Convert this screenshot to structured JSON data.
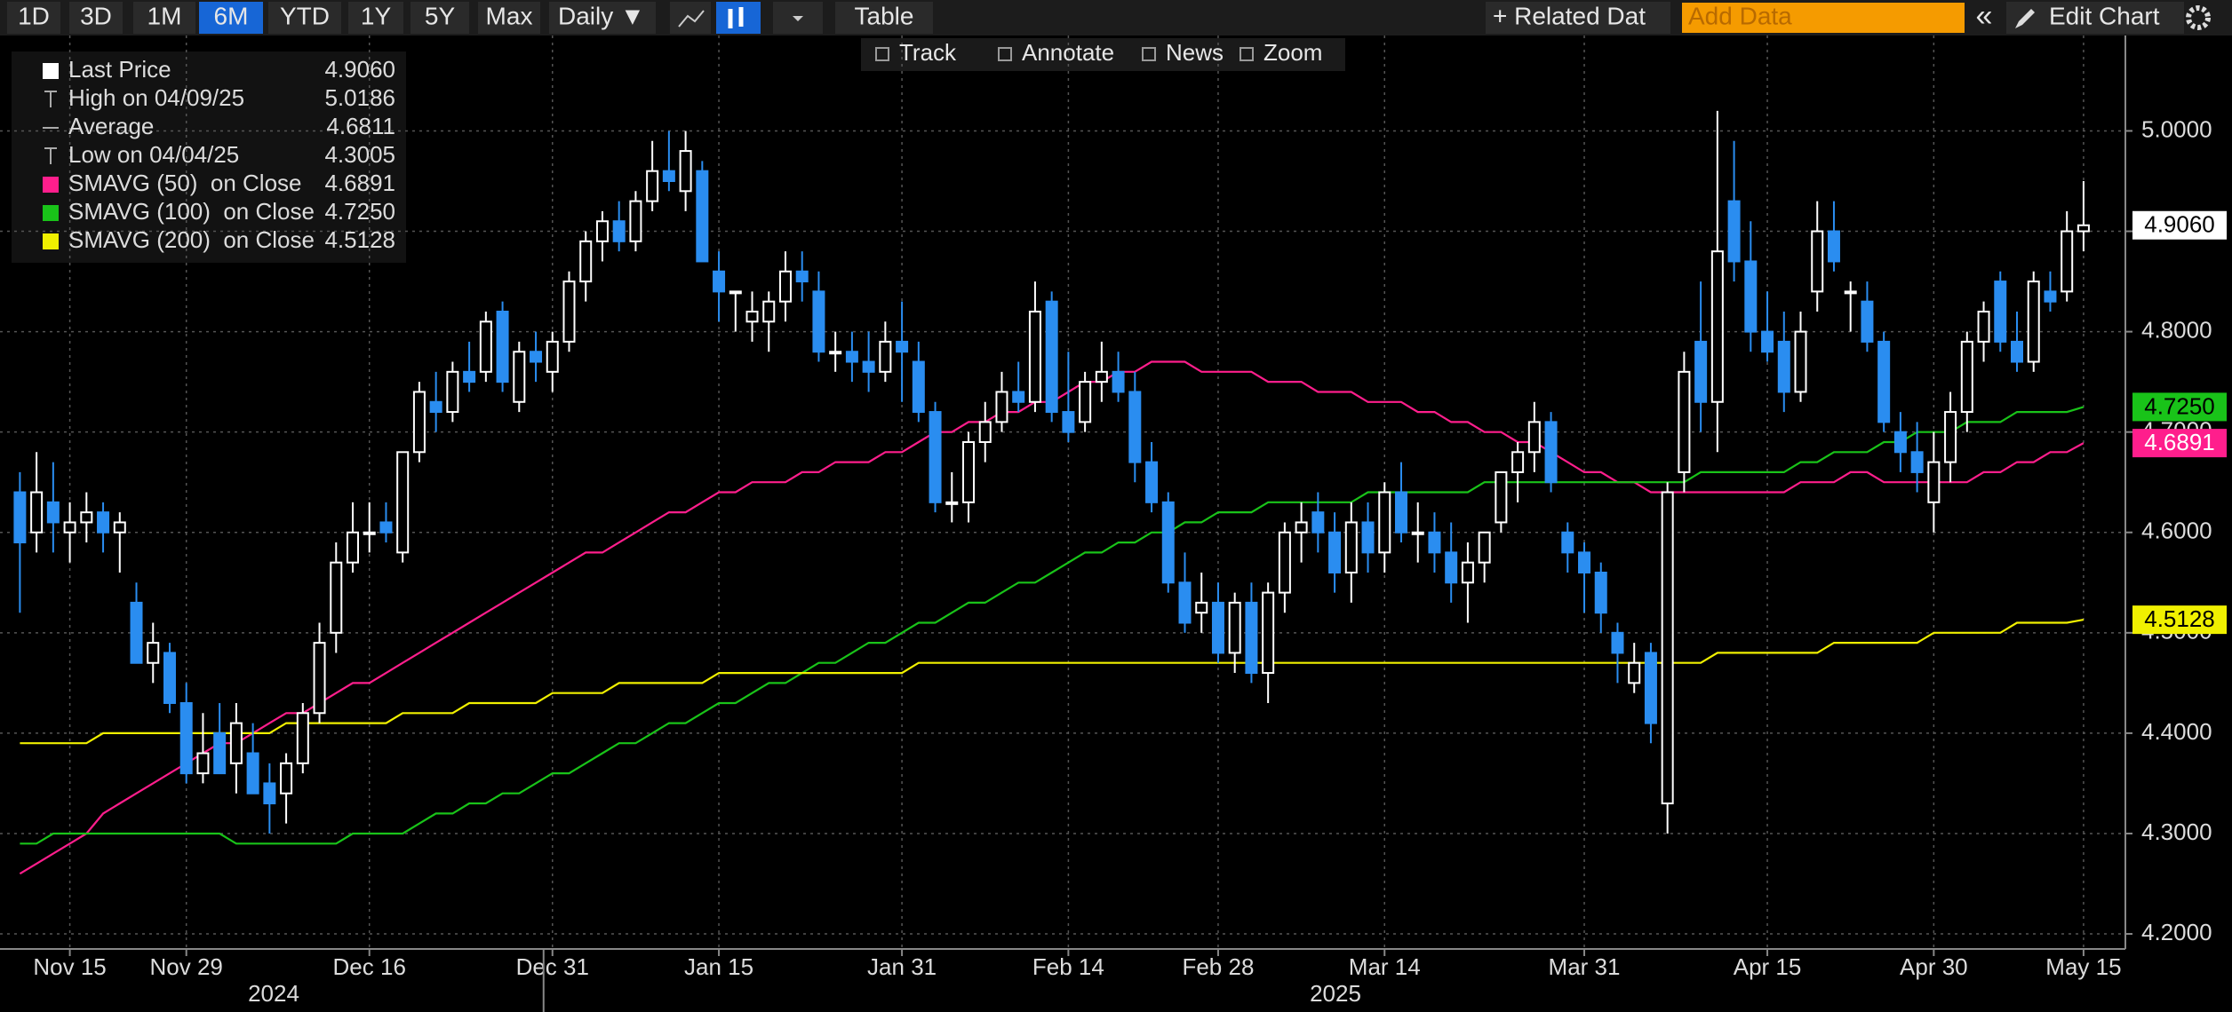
{
  "toolbar": {
    "ranges": [
      "1D",
      "3D",
      "1M",
      "6M",
      "YTD",
      "1Y",
      "5Y",
      "Max"
    ],
    "active_range": "6M",
    "frequency": "Daily ▼",
    "table": "Table",
    "related": "+ Related Dat",
    "add_data": "Add Data",
    "edit": "Edit Chart"
  },
  "subtoolbar": [
    "Track",
    "Annotate",
    "News",
    "Zoom"
  ],
  "legend": [
    {
      "label": "Last Price",
      "value": "4.9060"
    },
    {
      "label": "High on 04/09/25",
      "value": "5.0186"
    },
    {
      "label": "Average",
      "value": "4.6811"
    },
    {
      "label": "Low on 04/04/25",
      "value": "4.3005"
    }
  ],
  "chart_data": {
    "type": "candlestick",
    "categories": [
      null,
      null,
      null,
      "Nov 15",
      null,
      null,
      null,
      null,
      null,
      null,
      "Nov 29",
      null,
      null,
      null,
      null,
      null,
      null,
      null,
      null,
      null,
      null,
      "Dec 16",
      null,
      null,
      null,
      null,
      null,
      null,
      null,
      null,
      null,
      null,
      "Dec 31",
      null,
      null,
      null,
      null,
      null,
      null,
      null,
      null,
      null,
      "Jan 15",
      null,
      null,
      null,
      null,
      null,
      null,
      null,
      null,
      null,
      null,
      "Jan 31",
      null,
      null,
      null,
      null,
      null,
      null,
      null,
      null,
      null,
      "Feb 14",
      null,
      null,
      null,
      null,
      null,
      null,
      null,
      null,
      "Feb 28",
      null,
      null,
      null,
      null,
      null,
      null,
      null,
      null,
      null,
      "Mar 14",
      null,
      null,
      null,
      null,
      null,
      null,
      null,
      null,
      null,
      null,
      null,
      "Mar 31",
      null,
      null,
      null,
      null,
      null,
      null,
      null,
      null,
      null,
      null,
      "Apr 15",
      null,
      null,
      null,
      null,
      null,
      null,
      null,
      null,
      null,
      "Apr 30",
      null,
      null,
      null,
      null,
      null,
      null,
      null,
      null,
      "May 15"
    ],
    "open": [
      4.64,
      4.6,
      4.63,
      4.6,
      4.61,
      4.62,
      4.6,
      4.53,
      4.47,
      4.48,
      4.43,
      4.36,
      4.4,
      4.37,
      4.38,
      4.35,
      4.34,
      4.37,
      4.42,
      4.5,
      4.57,
      4.6,
      4.61,
      4.58,
      4.68,
      4.73,
      4.72,
      4.76,
      4.76,
      4.82,
      4.73,
      4.78,
      4.76,
      4.79,
      4.85,
      4.89,
      4.91,
      4.89,
      4.93,
      4.96,
      4.94,
      4.96,
      4.86,
      4.84,
      4.81,
      4.81,
      4.83,
      4.86,
      4.84,
      4.78,
      4.78,
      4.77,
      4.76,
      4.79,
      4.77,
      4.72,
      4.63,
      4.63,
      4.69,
      4.71,
      4.74,
      4.73,
      4.83,
      4.72,
      4.71,
      4.75,
      4.76,
      4.74,
      4.67,
      4.63,
      4.55,
      4.52,
      4.53,
      4.48,
      4.53,
      4.46,
      4.54,
      4.6,
      4.62,
      4.6,
      4.56,
      4.61,
      4.58,
      4.64,
      4.6,
      4.6,
      4.58,
      4.55,
      4.57,
      4.61,
      4.66,
      4.68,
      4.71,
      4.6,
      4.58,
      4.56,
      4.5,
      4.45,
      4.48,
      4.33,
      4.66,
      4.79,
      4.73,
      4.93,
      4.87,
      4.8,
      4.79,
      4.74,
      4.84,
      4.9,
      4.84,
      4.83,
      4.79,
      4.7,
      4.68,
      4.63,
      4.67,
      4.72,
      4.79,
      4.85,
      4.79,
      4.77,
      4.84,
      4.84,
      4.9
    ],
    "high": [
      4.66,
      4.68,
      4.67,
      4.63,
      4.64,
      4.63,
      4.62,
      4.55,
      4.51,
      4.49,
      4.45,
      4.42,
      4.43,
      4.43,
      4.41,
      4.37,
      4.38,
      4.43,
      4.51,
      4.59,
      4.63,
      4.63,
      4.63,
      4.68,
      4.75,
      4.76,
      4.77,
      4.79,
      4.82,
      4.83,
      4.79,
      4.8,
      4.8,
      4.86,
      4.9,
      4.92,
      4.93,
      4.94,
      4.99,
      5.0,
      5.0,
      4.97,
      4.88,
      4.84,
      4.84,
      4.84,
      4.88,
      4.88,
      4.86,
      4.8,
      4.8,
      4.8,
      4.81,
      4.83,
      4.79,
      4.73,
      4.66,
      4.7,
      4.73,
      4.76,
      4.77,
      4.85,
      4.84,
      4.78,
      4.76,
      4.79,
      4.78,
      4.76,
      4.69,
      4.64,
      4.58,
      4.56,
      4.55,
      4.54,
      4.55,
      4.55,
      4.61,
      4.63,
      4.64,
      4.62,
      4.63,
      4.63,
      4.65,
      4.67,
      4.63,
      4.62,
      4.61,
      4.59,
      4.6,
      4.66,
      4.69,
      4.73,
      4.72,
      4.61,
      4.59,
      4.57,
      4.51,
      4.49,
      4.49,
      4.65,
      4.78,
      4.85,
      5.02,
      4.99,
      4.91,
      4.84,
      4.82,
      4.82,
      4.93,
      4.93,
      4.85,
      4.85,
      4.8,
      4.72,
      4.71,
      4.7,
      4.74,
      4.8,
      4.83,
      4.86,
      4.82,
      4.86,
      4.86,
      4.92,
      4.95
    ],
    "low": [
      4.52,
      4.58,
      4.58,
      4.57,
      4.59,
      4.58,
      4.56,
      4.47,
      4.45,
      4.42,
      4.35,
      4.35,
      4.36,
      4.34,
      4.34,
      4.3,
      4.31,
      4.36,
      4.41,
      4.48,
      4.56,
      4.58,
      4.59,
      4.57,
      4.67,
      4.7,
      4.71,
      4.74,
      4.75,
      4.74,
      4.72,
      4.75,
      4.74,
      4.78,
      4.83,
      4.87,
      4.88,
      4.88,
      4.92,
      4.94,
      4.92,
      4.87,
      4.81,
      4.8,
      4.79,
      4.78,
      4.81,
      4.83,
      4.77,
      4.76,
      4.75,
      4.74,
      4.75,
      4.73,
      4.71,
      4.62,
      4.61,
      4.61,
      4.67,
      4.7,
      4.72,
      4.72,
      4.71,
      4.69,
      4.7,
      4.73,
      4.73,
      4.65,
      4.62,
      4.54,
      4.5,
      4.5,
      4.47,
      4.46,
      4.45,
      4.43,
      4.52,
      4.57,
      4.58,
      4.54,
      4.53,
      4.56,
      4.56,
      4.59,
      4.57,
      4.56,
      4.53,
      4.51,
      4.55,
      4.6,
      4.63,
      4.66,
      4.64,
      4.56,
      4.52,
      4.5,
      4.45,
      4.44,
      4.39,
      4.3,
      4.64,
      4.7,
      4.68,
      4.85,
      4.78,
      4.77,
      4.72,
      4.73,
      4.82,
      4.86,
      4.8,
      4.78,
      4.7,
      4.66,
      4.64,
      4.6,
      4.65,
      4.7,
      4.77,
      4.78,
      4.76,
      4.76,
      4.82,
      4.83,
      4.88
    ],
    "close": [
      4.59,
      4.64,
      4.61,
      4.61,
      4.62,
      4.6,
      4.61,
      4.47,
      4.49,
      4.43,
      4.36,
      4.38,
      4.36,
      4.41,
      4.34,
      4.33,
      4.37,
      4.42,
      4.49,
      4.57,
      4.6,
      4.6,
      4.6,
      4.68,
      4.74,
      4.72,
      4.76,
      4.75,
      4.81,
      4.75,
      4.78,
      4.77,
      4.79,
      4.85,
      4.89,
      4.91,
      4.89,
      4.93,
      4.96,
      4.95,
      4.98,
      4.87,
      4.84,
      4.84,
      4.82,
      4.83,
      4.86,
      4.85,
      4.78,
      4.78,
      4.77,
      4.76,
      4.79,
      4.78,
      4.72,
      4.63,
      4.63,
      4.69,
      4.71,
      4.74,
      4.73,
      4.82,
      4.72,
      4.7,
      4.75,
      4.76,
      4.74,
      4.67,
      4.63,
      4.55,
      4.51,
      4.53,
      4.48,
      4.53,
      4.46,
      4.54,
      4.6,
      4.61,
      4.6,
      4.56,
      4.61,
      4.58,
      4.64,
      4.6,
      4.6,
      4.58,
      4.55,
      4.57,
      4.6,
      4.66,
      4.68,
      4.71,
      4.65,
      4.58,
      4.56,
      4.52,
      4.48,
      4.47,
      4.41,
      4.64,
      4.76,
      4.73,
      4.88,
      4.87,
      4.8,
      4.78,
      4.74,
      4.8,
      4.9,
      4.87,
      4.84,
      4.79,
      4.71,
      4.68,
      4.66,
      4.67,
      4.72,
      4.79,
      4.82,
      4.79,
      4.77,
      4.85,
      4.83,
      4.9,
      4.906
    ],
    "up_color": "#ffffff",
    "down_color": "#2a8df0",
    "series": [
      {
        "name": "SMAVG (50)  on Close",
        "color": "#ff1e8c",
        "value_label": "4.6891",
        "values": [
          4.26,
          4.27,
          4.28,
          4.29,
          4.3,
          4.32,
          4.33,
          4.34,
          4.35,
          4.36,
          4.37,
          4.38,
          4.39,
          4.39,
          4.4,
          4.41,
          4.42,
          4.42,
          4.43,
          4.44,
          4.45,
          4.45,
          4.46,
          4.47,
          4.48,
          4.49,
          4.5,
          4.51,
          4.52,
          4.53,
          4.54,
          4.55,
          4.56,
          4.57,
          4.58,
          4.58,
          4.59,
          4.6,
          4.61,
          4.62,
          4.62,
          4.63,
          4.64,
          4.64,
          4.65,
          4.65,
          4.65,
          4.66,
          4.66,
          4.67,
          4.67,
          4.67,
          4.68,
          4.68,
          4.69,
          4.7,
          4.7,
          4.71,
          4.71,
          4.72,
          4.72,
          4.73,
          4.73,
          4.74,
          4.75,
          4.75,
          4.76,
          4.76,
          4.77,
          4.77,
          4.77,
          4.76,
          4.76,
          4.76,
          4.76,
          4.75,
          4.75,
          4.75,
          4.74,
          4.74,
          4.74,
          4.73,
          4.73,
          4.73,
          4.72,
          4.72,
          4.71,
          4.71,
          4.7,
          4.7,
          4.69,
          4.69,
          4.68,
          4.67,
          4.66,
          4.66,
          4.65,
          4.65,
          4.64,
          4.64,
          4.64,
          4.64,
          4.64,
          4.64,
          4.64,
          4.64,
          4.64,
          4.65,
          4.65,
          4.65,
          4.66,
          4.66,
          4.65,
          4.65,
          4.65,
          4.65,
          4.65,
          4.65,
          4.66,
          4.66,
          4.67,
          4.67,
          4.68,
          4.68,
          4.689
        ]
      },
      {
        "name": "SMAVG (100)  on Close",
        "color": "#19c319",
        "value_label": "4.7250",
        "values": [
          4.29,
          4.29,
          4.3,
          4.3,
          4.3,
          4.3,
          4.3,
          4.3,
          4.3,
          4.3,
          4.3,
          4.3,
          4.3,
          4.29,
          4.29,
          4.29,
          4.29,
          4.29,
          4.29,
          4.29,
          4.3,
          4.3,
          4.3,
          4.3,
          4.31,
          4.32,
          4.32,
          4.33,
          4.33,
          4.34,
          4.34,
          4.35,
          4.36,
          4.36,
          4.37,
          4.38,
          4.39,
          4.39,
          4.4,
          4.41,
          4.41,
          4.42,
          4.43,
          4.43,
          4.44,
          4.45,
          4.45,
          4.46,
          4.47,
          4.47,
          4.48,
          4.49,
          4.49,
          4.5,
          4.51,
          4.51,
          4.52,
          4.53,
          4.53,
          4.54,
          4.55,
          4.55,
          4.56,
          4.57,
          4.58,
          4.58,
          4.59,
          4.59,
          4.6,
          4.6,
          4.61,
          4.61,
          4.62,
          4.62,
          4.62,
          4.63,
          4.63,
          4.63,
          4.63,
          4.63,
          4.63,
          4.64,
          4.64,
          4.64,
          4.64,
          4.64,
          4.64,
          4.64,
          4.65,
          4.65,
          4.65,
          4.65,
          4.65,
          4.65,
          4.65,
          4.65,
          4.65,
          4.65,
          4.65,
          4.65,
          4.65,
          4.66,
          4.66,
          4.66,
          4.66,
          4.66,
          4.66,
          4.67,
          4.67,
          4.68,
          4.68,
          4.68,
          4.69,
          4.69,
          4.7,
          4.7,
          4.7,
          4.71,
          4.71,
          4.71,
          4.72,
          4.72,
          4.72,
          4.72,
          4.725
        ]
      },
      {
        "name": "SMAVG (200)  on Close",
        "color": "#f0f000",
        "value_label": "4.5128",
        "values": [
          4.39,
          4.39,
          4.39,
          4.39,
          4.39,
          4.4,
          4.4,
          4.4,
          4.4,
          4.4,
          4.4,
          4.4,
          4.4,
          4.4,
          4.4,
          4.4,
          4.41,
          4.41,
          4.41,
          4.41,
          4.41,
          4.41,
          4.41,
          4.42,
          4.42,
          4.42,
          4.42,
          4.43,
          4.43,
          4.43,
          4.43,
          4.43,
          4.44,
          4.44,
          4.44,
          4.44,
          4.45,
          4.45,
          4.45,
          4.45,
          4.45,
          4.45,
          4.46,
          4.46,
          4.46,
          4.46,
          4.46,
          4.46,
          4.46,
          4.46,
          4.46,
          4.46,
          4.46,
          4.46,
          4.47,
          4.47,
          4.47,
          4.47,
          4.47,
          4.47,
          4.47,
          4.47,
          4.47,
          4.47,
          4.47,
          4.47,
          4.47,
          4.47,
          4.47,
          4.47,
          4.47,
          4.47,
          4.47,
          4.47,
          4.47,
          4.47,
          4.47,
          4.47,
          4.47,
          4.47,
          4.47,
          4.47,
          4.47,
          4.47,
          4.47,
          4.47,
          4.47,
          4.47,
          4.47,
          4.47,
          4.47,
          4.47,
          4.47,
          4.47,
          4.47,
          4.47,
          4.47,
          4.47,
          4.47,
          4.47,
          4.47,
          4.47,
          4.48,
          4.48,
          4.48,
          4.48,
          4.48,
          4.48,
          4.48,
          4.49,
          4.49,
          4.49,
          4.49,
          4.49,
          4.49,
          4.5,
          4.5,
          4.5,
          4.5,
          4.5,
          4.51,
          4.51,
          4.51,
          4.51,
          4.513
        ]
      }
    ],
    "ylim": [
      4.185,
      5.09
    ],
    "yticks": [
      {
        "value": 4.2,
        "label": "4.2000"
      },
      {
        "value": 4.3,
        "label": "4.3000"
      },
      {
        "value": 4.4,
        "label": "4.4000"
      },
      {
        "value": 4.5,
        "label": "4.5000"
      },
      {
        "value": 4.6,
        "label": "4.6000"
      },
      {
        "value": 4.7,
        "label": "4.7000"
      },
      {
        "value": 4.8,
        "label": "4.8000"
      },
      {
        "value": 4.9,
        "label": "4.9000"
      },
      {
        "value": 5.0,
        "label": "5.0000"
      }
    ],
    "grid": true,
    "year_labels": [
      "2024",
      "2025"
    ]
  }
}
